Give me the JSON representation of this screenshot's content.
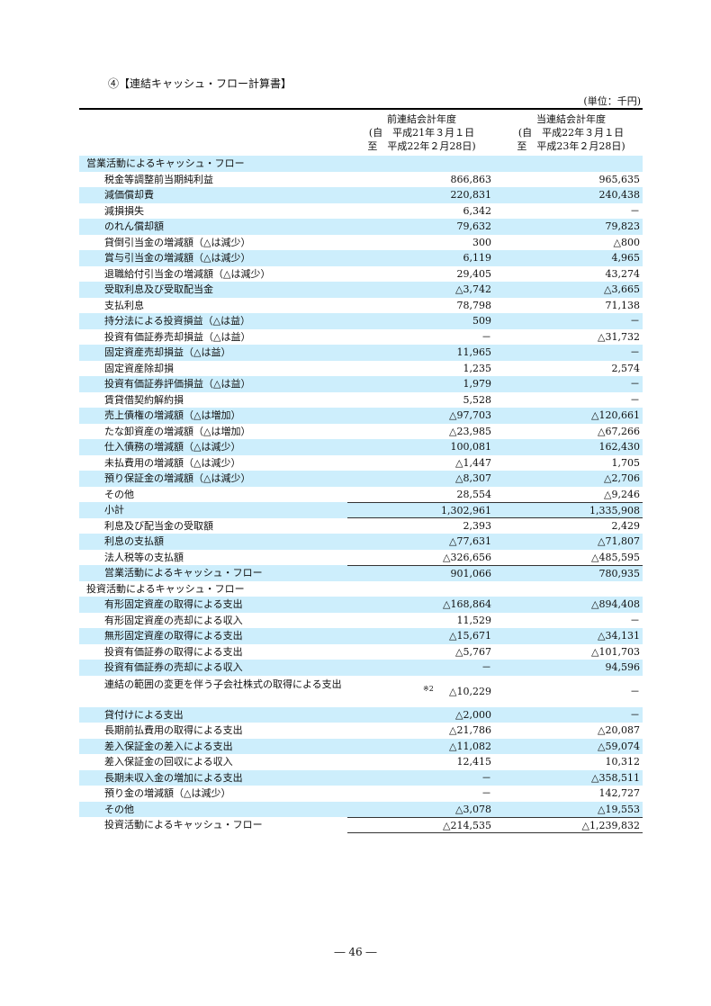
{
  "title": "④【連結キャッシュ・フロー計算書】",
  "unit": "(単位：千円)",
  "columns": [
    {
      "label": "前連結会計年度",
      "from": "(自　平成21年３月１日",
      "to": "至　平成22年２月28日)"
    },
    {
      "label": "当連結会計年度",
      "from": "(自　平成22年３月１日",
      "to": "至　平成23年２月28日)"
    }
  ],
  "shade_color": "#cdeefc",
  "rows": [
    {
      "label": "営業活動によるキャッシュ・フロー",
      "prev": "",
      "curr": "",
      "section": true
    },
    {
      "label": "税金等調整前当期純利益",
      "prev": "866,863",
      "curr": "965,635"
    },
    {
      "label": "減価償却費",
      "prev": "220,831",
      "curr": "240,438"
    },
    {
      "label": "減損損失",
      "prev": "6,342",
      "curr": "－"
    },
    {
      "label": "のれん償却額",
      "prev": "79,632",
      "curr": "79,823"
    },
    {
      "label": "貸倒引当金の増減額（△は減少）",
      "prev": "300",
      "curr": "△800"
    },
    {
      "label": "賞与引当金の増減額（△は減少）",
      "prev": "6,119",
      "curr": "4,965"
    },
    {
      "label": "退職給付引当金の増減額（△は減少）",
      "prev": "29,405",
      "curr": "43,274"
    },
    {
      "label": "受取利息及び受取配当金",
      "prev": "△3,742",
      "curr": "△3,665"
    },
    {
      "label": "支払利息",
      "prev": "78,798",
      "curr": "71,138"
    },
    {
      "label": "持分法による投資損益（△は益）",
      "prev": "509",
      "curr": "－"
    },
    {
      "label": "投資有価証券売却損益（△は益）",
      "prev": "－",
      "curr": "△31,732"
    },
    {
      "label": "固定資産売却損益（△は益）",
      "prev": "11,965",
      "curr": "－"
    },
    {
      "label": "固定資産除却損",
      "prev": "1,235",
      "curr": "2,574"
    },
    {
      "label": "投資有価証券評価損益（△は益）",
      "prev": "1,979",
      "curr": "－"
    },
    {
      "label": "賃貸借契約解約損",
      "prev": "5,528",
      "curr": "－"
    },
    {
      "label": "売上債権の増減額（△は増加）",
      "prev": "△97,703",
      "curr": "△120,661"
    },
    {
      "label": "たな卸資産の増減額（△は増加）",
      "prev": "△23,985",
      "curr": "△67,266"
    },
    {
      "label": "仕入債務の増減額（△は減少）",
      "prev": "100,081",
      "curr": "162,430"
    },
    {
      "label": "未払費用の増減額（△は減少）",
      "prev": "△1,447",
      "curr": "1,705"
    },
    {
      "label": "預り保証金の増減額（△は減少）",
      "prev": "△8,307",
      "curr": "△2,706"
    },
    {
      "label": "その他",
      "prev": "28,554",
      "curr": "△9,246"
    },
    {
      "label": "小計",
      "prev": "1,302,961",
      "curr": "1,335,908",
      "line_top": true,
      "line_bottom": true
    },
    {
      "label": "利息及び配当金の受取額",
      "prev": "2,393",
      "curr": "2,429"
    },
    {
      "label": "利息の支払額",
      "prev": "△77,631",
      "curr": "△71,807"
    },
    {
      "label": "法人税等の支払額",
      "prev": "△326,656",
      "curr": "△485,595"
    },
    {
      "label": "営業活動によるキャッシュ・フロー",
      "prev": "901,066",
      "curr": "780,935",
      "line_top": true
    },
    {
      "label": "投資活動によるキャッシュ・フロー",
      "prev": "",
      "curr": "",
      "section": true
    },
    {
      "label": "有形固定資産の取得による支出",
      "prev": "△168,864",
      "curr": "△894,408"
    },
    {
      "label": "有形固定資産の売却による収入",
      "prev": "11,529",
      "curr": "－"
    },
    {
      "label": "無形固定資産の取得による支出",
      "prev": "△15,671",
      "curr": "△34,131"
    },
    {
      "label": "投資有価証券の取得による支出",
      "prev": "△5,767",
      "curr": "△101,703"
    },
    {
      "label": "投資有価証券の売却による収入",
      "prev": "－",
      "curr": "94,596"
    },
    {
      "label": "連結の範囲の変更を伴う子会社株式の取得による支出",
      "prev": "△10,229",
      "curr": "－",
      "note": "※2",
      "tall": true
    },
    {
      "label": "貸付けによる支出",
      "prev": "△2,000",
      "curr": "－"
    },
    {
      "label": "長期前払費用の取得による支出",
      "prev": "△21,786",
      "curr": "△20,087"
    },
    {
      "label": "差入保証金の差入による支出",
      "prev": "△11,082",
      "curr": "△59,074"
    },
    {
      "label": "差入保証金の回収による収入",
      "prev": "12,415",
      "curr": "10,312"
    },
    {
      "label": "長期未収入金の増加による支出",
      "prev": "－",
      "curr": "△358,511"
    },
    {
      "label": "預り金の増減額（△は減少）",
      "prev": "－",
      "curr": "142,727"
    },
    {
      "label": "その他",
      "prev": "△3,078",
      "curr": "△19,553"
    },
    {
      "label": "投資活動によるキャッシュ・フロー",
      "prev": "△214,535",
      "curr": "△1,239,832",
      "line_top": true,
      "line_bottom": true
    }
  ],
  "page_number": "― 46 ―"
}
